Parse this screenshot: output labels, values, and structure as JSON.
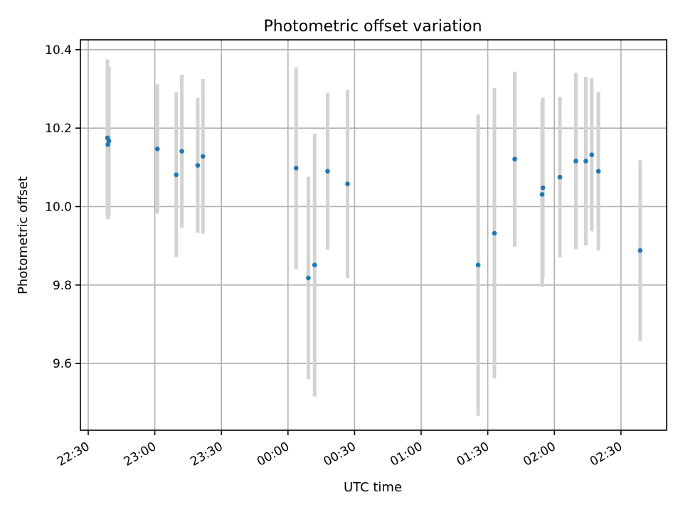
{
  "chart_data": {
    "type": "scatter",
    "title": "Photometric offset variation",
    "xlabel": "UTC time",
    "ylabel": "Photometric offset",
    "grid": true,
    "x_ticks": [
      "22:30",
      "23:00",
      "23:30",
      "00:00",
      "00:30",
      "01:00",
      "01:30",
      "02:00",
      "02:30"
    ],
    "y_ticks": [
      "9.6",
      "9.8",
      "10.0",
      "10.2",
      "10.4"
    ],
    "ylim": [
      9.43,
      10.425
    ],
    "colors": {
      "points": "#1f77b4",
      "error_bars": "#d3d3d3"
    },
    "series": [
      {
        "points": [
          {
            "x": "22:38:40",
            "y": 10.175,
            "err": 0.2
          },
          {
            "x": "22:38:50",
            "y": 10.158,
            "err": 0.19
          },
          {
            "x": "22:39:20",
            "y": 10.167,
            "err": 0.19
          },
          {
            "x": "23:01:10",
            "y": 10.147,
            "err": 0.165
          },
          {
            "x": "23:09:40",
            "y": 10.081,
            "err": 0.21
          },
          {
            "x": "23:12:10",
            "y": 10.141,
            "err": 0.195
          },
          {
            "x": "23:19:20",
            "y": 10.105,
            "err": 0.172
          },
          {
            "x": "23:21:40",
            "y": 10.128,
            "err": 0.197
          },
          {
            "x": "00:03:40",
            "y": 10.098,
            "err": 0.257
          },
          {
            "x": "00:09:10",
            "y": 9.818,
            "err": 0.258
          },
          {
            "x": "00:12:00",
            "y": 9.851,
            "err": 0.335
          },
          {
            "x": "00:17:50",
            "y": 10.09,
            "err": 0.2
          },
          {
            "x": "00:26:50",
            "y": 10.058,
            "err": 0.24
          },
          {
            "x": "01:25:40",
            "y": 9.851,
            "err": 0.384
          },
          {
            "x": "01:33:00",
            "y": 9.932,
            "err": 0.37
          },
          {
            "x": "01:42:10",
            "y": 10.121,
            "err": 0.223
          },
          {
            "x": "01:54:30",
            "y": 10.031,
            "err": 0.236
          },
          {
            "x": "01:54:50",
            "y": 10.048,
            "err": 0.23
          },
          {
            "x": "02:02:30",
            "y": 10.075,
            "err": 0.205
          },
          {
            "x": "02:09:40",
            "y": 10.116,
            "err": 0.225
          },
          {
            "x": "02:14:10",
            "y": 10.116,
            "err": 0.215
          },
          {
            "x": "02:16:50",
            "y": 10.132,
            "err": 0.195
          },
          {
            "x": "02:19:50",
            "y": 10.09,
            "err": 0.202
          },
          {
            "x": "02:38:40",
            "y": 9.888,
            "err": 0.23
          }
        ]
      }
    ]
  }
}
